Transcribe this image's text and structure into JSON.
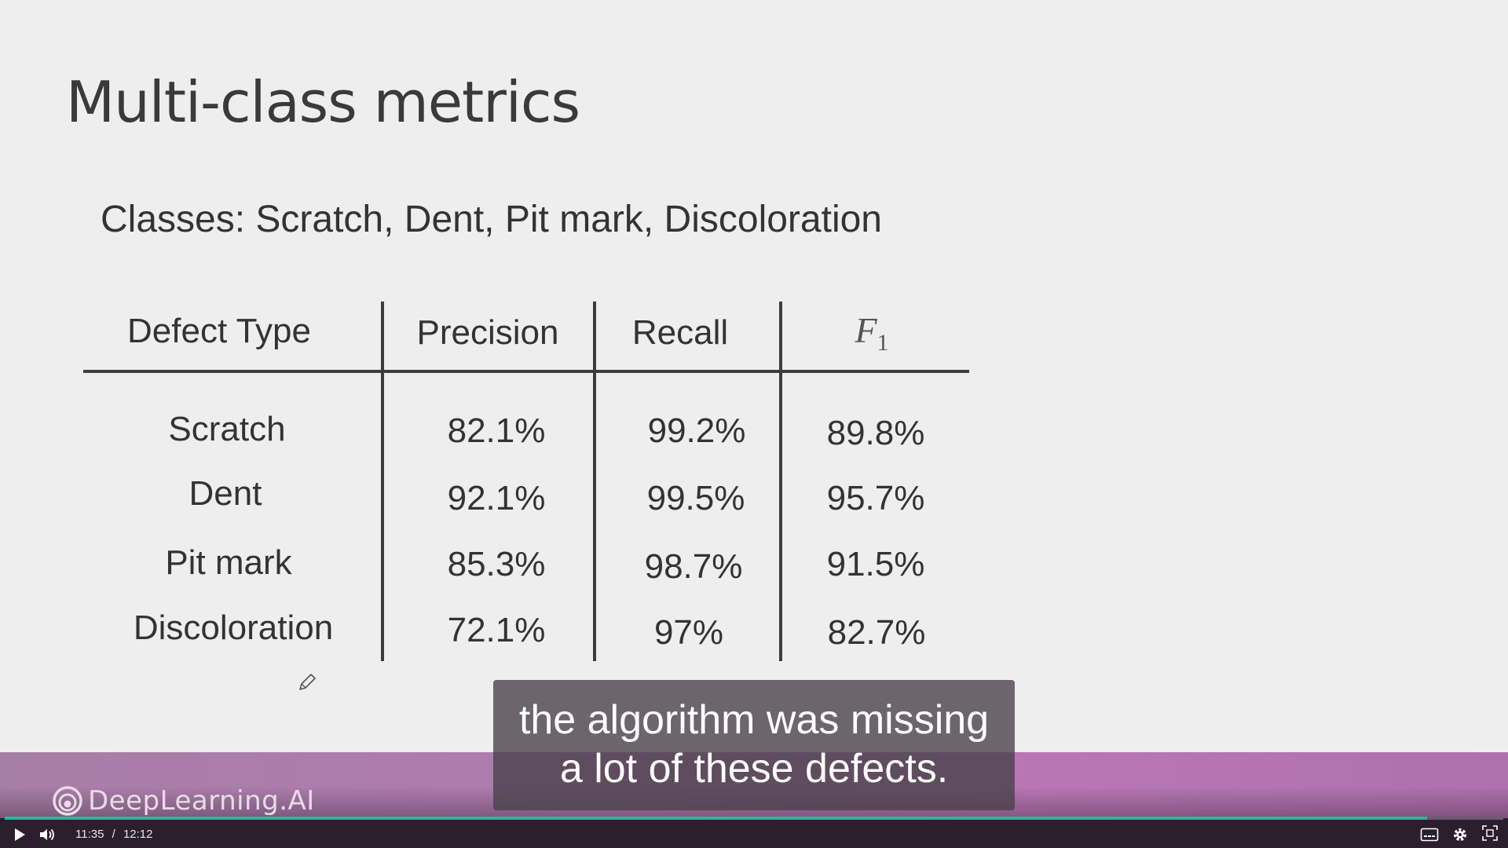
{
  "slide": {
    "title": "Multi-class metrics",
    "subtitle": "Classes: Scratch, Dent, Pit mark, Discoloration"
  },
  "table": {
    "headers": [
      "Defect Type",
      "Precision",
      "Recall"
    ],
    "f1_header_main": "F",
    "f1_header_sub": "1",
    "rows": [
      {
        "type": "Scratch",
        "precision": "82.1%",
        "recall": "99.2%",
        "f1": "89.8%"
      },
      {
        "type": "Dent",
        "precision": "92.1%",
        "recall": "99.5%",
        "f1": "95.7%"
      },
      {
        "type": "Pit mark",
        "precision": "85.3%",
        "recall": "98.7%",
        "f1": "91.5%"
      },
      {
        "type": "Discoloration",
        "precision": "72.1%",
        "recall": "97%",
        "f1": "82.7%"
      }
    ]
  },
  "branding": {
    "text": "DeepLearning.AI"
  },
  "caption": {
    "line1": "the algorithm was missing",
    "line2": "a lot of these defects."
  },
  "player": {
    "current_time": "11:35",
    "separator": "/",
    "duration": "12:12",
    "progress": 0.949,
    "accent_color": "#2bb59a"
  },
  "icons": [
    "play-icon",
    "volume-icon",
    "captions-icon",
    "settings-icon",
    "fullscreen-icon",
    "pen-icon",
    "deeplearning-logo-icon"
  ]
}
